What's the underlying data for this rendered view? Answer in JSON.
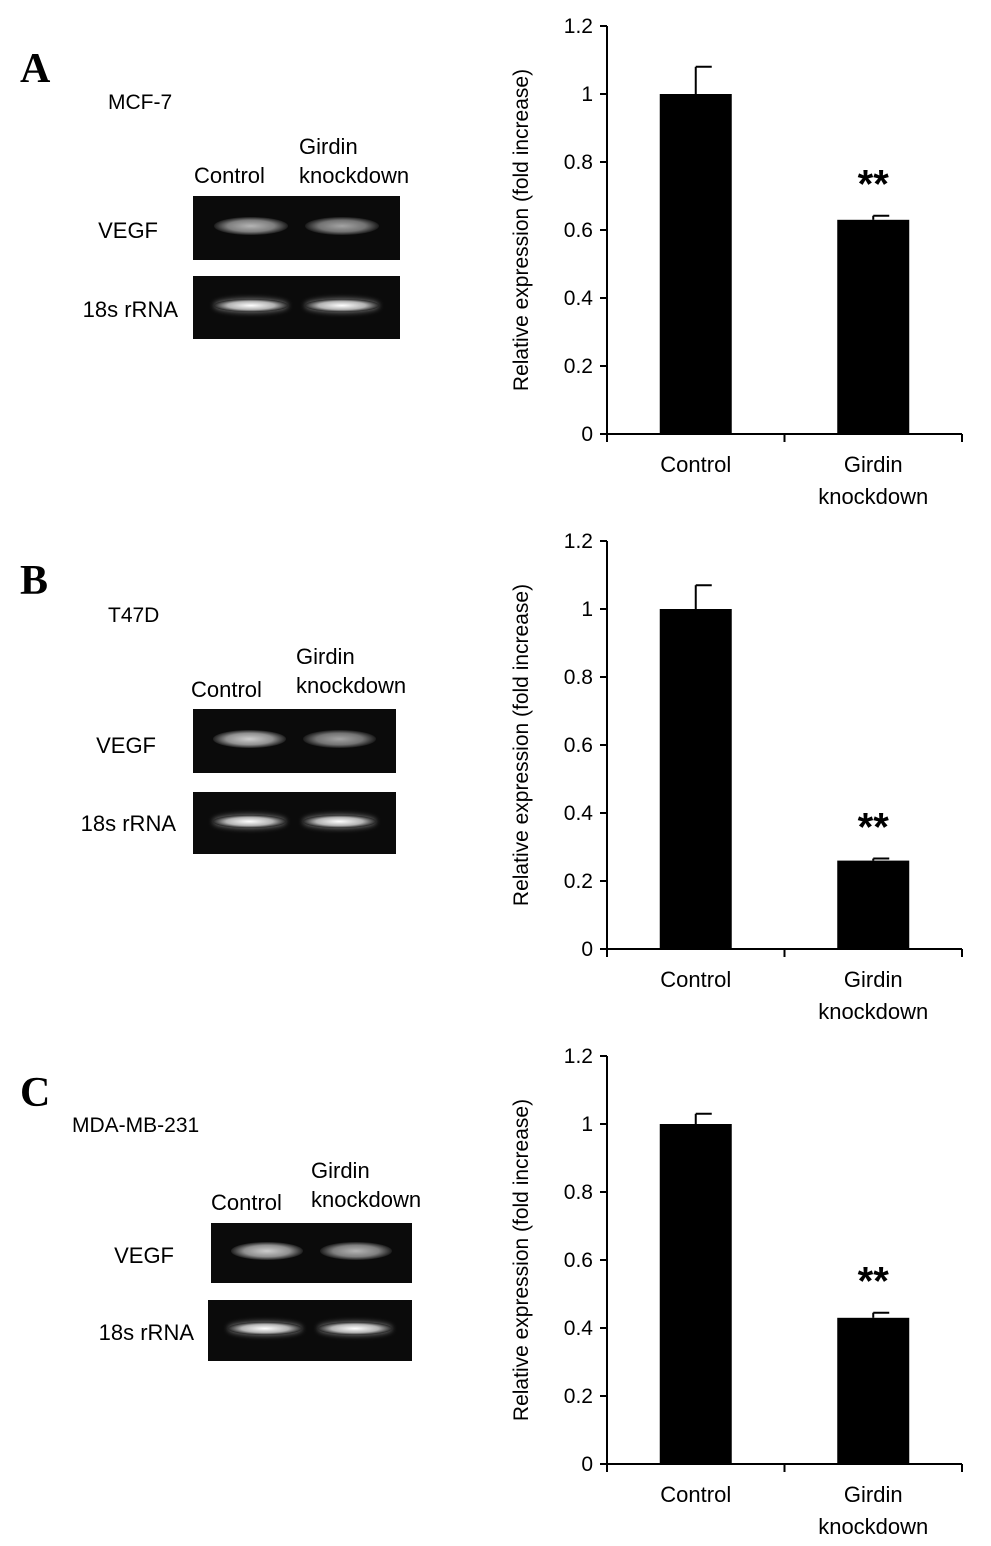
{
  "panels": [
    {
      "letter": "A",
      "cell_line": "MCF-7",
      "gel": {
        "columns": [
          "Control",
          [
            "Girdin",
            "knockdown"
          ]
        ],
        "rows": [
          {
            "label": "VEGF",
            "intensity": [
              0.55,
              0.45
            ]
          },
          {
            "label": "18s rRNA",
            "intensity": [
              1.0,
              1.0
            ]
          }
        ]
      }
    },
    {
      "letter": "B",
      "cell_line": "T47D",
      "gel": {
        "columns": [
          "Control",
          [
            "Girdin",
            "knockdown"
          ]
        ],
        "rows": [
          {
            "label": "VEGF",
            "intensity": [
              0.7,
              0.45
            ]
          },
          {
            "label": "18s rRNA",
            "intensity": [
              1.0,
              1.0
            ]
          }
        ]
      }
    },
    {
      "letter": "C",
      "cell_line": "MDA-MB-231",
      "gel": {
        "columns": [
          "Control",
          [
            "Girdin",
            "knockdown"
          ]
        ],
        "rows": [
          {
            "label": "VEGF",
            "intensity": [
              0.7,
              0.55
            ]
          },
          {
            "label": "18s rRNA",
            "intensity": [
              1.0,
              1.0
            ]
          }
        ]
      }
    }
  ],
  "chart_data": [
    {
      "type": "bar",
      "categories": [
        "Control",
        "Girdin knockdown"
      ],
      "values": [
        1.0,
        0.63
      ],
      "errors": [
        0.08,
        0.012
      ],
      "annotations": [
        "",
        "**"
      ],
      "ylabel": "Relative expression (fold increase)",
      "ylim": [
        0,
        1.2
      ],
      "yticks": [
        "0",
        "0.2",
        "0.4",
        "0.6",
        "0.8",
        "1",
        "1.2"
      ],
      "bar_color": "#000000"
    },
    {
      "type": "bar",
      "categories": [
        "Control",
        "Girdin knockdown"
      ],
      "values": [
        1.0,
        0.26
      ],
      "errors": [
        0.07,
        0.006
      ],
      "annotations": [
        "",
        "**"
      ],
      "ylabel": "Relative expression (fold increase)",
      "ylim": [
        0,
        1.2
      ],
      "yticks": [
        "0",
        "0.2",
        "0.4",
        "0.6",
        "0.8",
        "1",
        "1.2"
      ],
      "bar_color": "#000000"
    },
    {
      "type": "bar",
      "categories": [
        "Control",
        "Girdin knockdown"
      ],
      "values": [
        1.0,
        0.43
      ],
      "errors": [
        0.03,
        0.015
      ],
      "annotations": [
        "",
        "**"
      ],
      "ylabel": "Relative expression (fold increase)",
      "ylim": [
        0,
        1.2
      ],
      "yticks": [
        "0",
        "0.2",
        "0.4",
        "0.6",
        "0.8",
        "1",
        "1.2"
      ],
      "bar_color": "#000000"
    }
  ]
}
